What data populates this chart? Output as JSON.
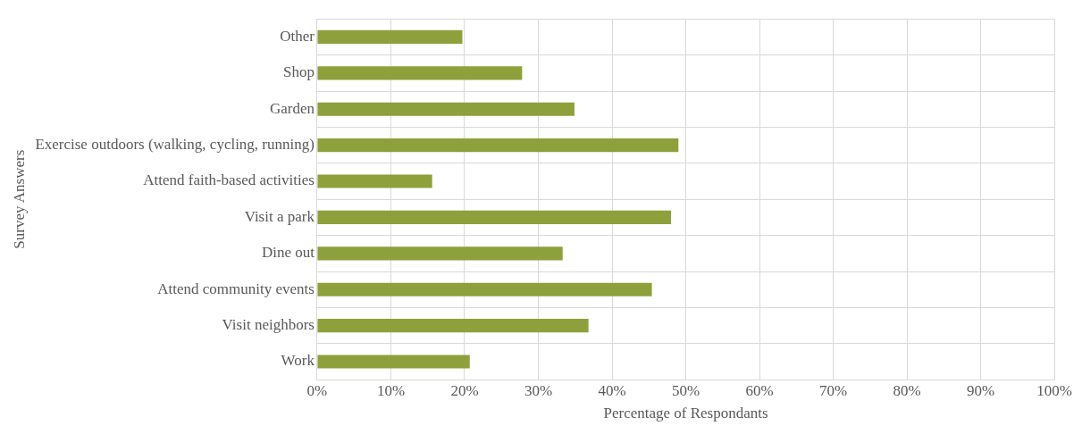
{
  "chart_data": {
    "type": "bar",
    "orientation": "horizontal",
    "xlabel": "Percentage of Respondants",
    "ylabel": "Survey Answers",
    "categories": [
      "Other",
      "Shop",
      "Garden",
      "Exercise outdoors (walking, cycling, running)",
      "Attend faith-based activities",
      "Visit a park",
      "Dine out",
      "Attend community events",
      "Visit neighbors",
      "Work"
    ],
    "values": [
      19.7,
      27.8,
      34.9,
      49.0,
      15.6,
      48.0,
      33.3,
      45.4,
      36.8,
      20.7
    ],
    "color": "#8ea03c",
    "xlim": [
      0,
      100
    ],
    "xticks": [
      {
        "value": 0,
        "label": "0%"
      },
      {
        "value": 10,
        "label": "10%"
      },
      {
        "value": 20,
        "label": "20%"
      },
      {
        "value": 30,
        "label": "30%"
      },
      {
        "value": 40,
        "label": "40%"
      },
      {
        "value": 50,
        "label": "50%"
      },
      {
        "value": 60,
        "label": "60%"
      },
      {
        "value": 70,
        "label": "70%"
      },
      {
        "value": 80,
        "label": "80%"
      },
      {
        "value": 90,
        "label": "90%"
      },
      {
        "value": 100,
        "label": "100%"
      }
    ],
    "grid": true
  }
}
